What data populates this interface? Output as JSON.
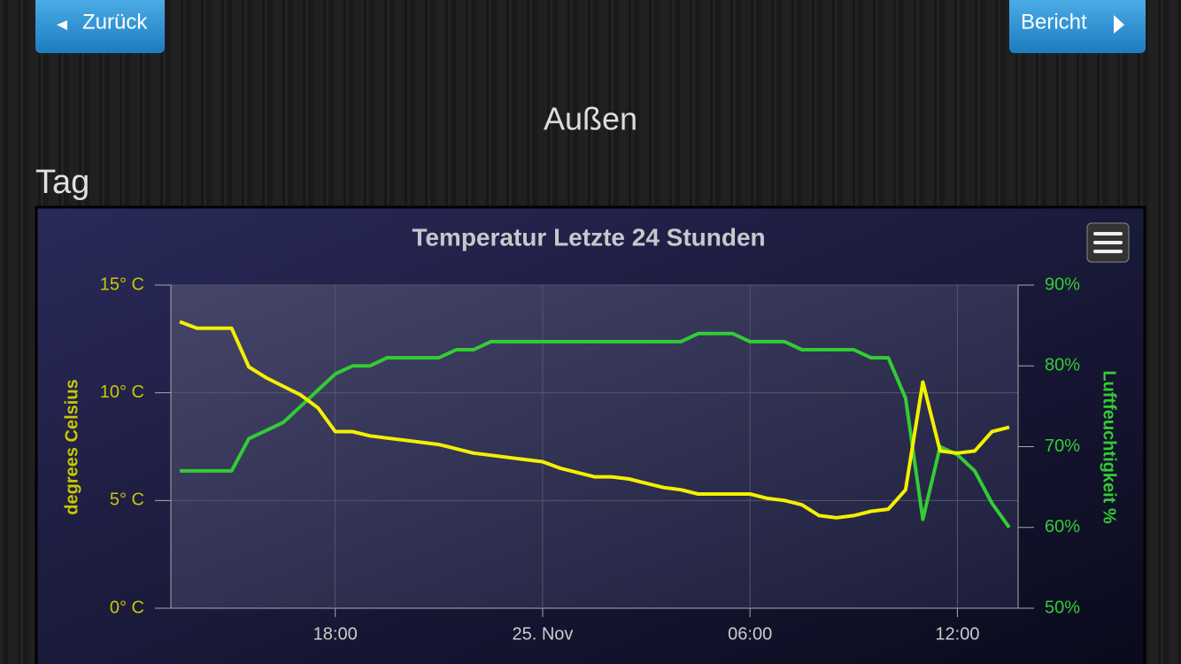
{
  "header": {
    "back": "Zurück",
    "report": "Bericht",
    "title": "Außen"
  },
  "section": "Tag",
  "chart_data": {
    "type": "line",
    "title": "Temperatur Letzte 24 Stunden",
    "x": [
      "13:30",
      "14:00",
      "14:30",
      "15:00",
      "15:30",
      "16:00",
      "16:30",
      "17:00",
      "17:30",
      "18:00",
      "18:30",
      "19:00",
      "19:30",
      "20:00",
      "20:30",
      "21:00",
      "21:30",
      "22:00",
      "22:30",
      "23:00",
      "23:30",
      "00:00",
      "00:30",
      "01:00",
      "01:30",
      "02:00",
      "02:30",
      "03:00",
      "03:30",
      "04:00",
      "04:30",
      "05:00",
      "05:30",
      "06:00",
      "06:30",
      "07:00",
      "07:30",
      "08:00",
      "08:30",
      "09:00",
      "09:30",
      "10:00",
      "10:30",
      "11:00",
      "11:30",
      "12:00",
      "12:30",
      "13:00",
      "13:30"
    ],
    "xticks": [
      "18:00",
      {
        "value": "00:00",
        "label": "25. Nov"
      },
      "06:00",
      "12:00"
    ],
    "ylabel": "degrees Celsius",
    "y2label": "Luftfeuchtigkeit %",
    "ylim": [
      0,
      15
    ],
    "yticks": [
      {
        "value": 0,
        "label": "0° C"
      },
      {
        "value": 5,
        "label": "5° C"
      },
      {
        "value": 10,
        "label": "10° C"
      },
      {
        "value": 15,
        "label": "15° C"
      }
    ],
    "y2lim": [
      50,
      90
    ],
    "y2ticks": [
      {
        "value": 50,
        "label": "50%"
      },
      {
        "value": 60,
        "label": "60%"
      },
      {
        "value": 70,
        "label": "70%"
      },
      {
        "value": 80,
        "label": "80%"
      },
      {
        "value": 90,
        "label": "90%"
      }
    ],
    "grid": true,
    "series": [
      {
        "color": "#f4f000",
        "values": [
          13.3,
          13.0,
          13.0,
          13.0,
          11.2,
          10.7,
          10.3,
          9.9,
          9.3,
          8.2,
          8.2,
          8.0,
          7.9,
          7.8,
          7.7,
          7.6,
          7.4,
          7.2,
          7.1,
          7.0,
          6.9,
          6.8,
          6.5,
          6.3,
          6.1,
          6.1,
          6.0,
          5.8,
          5.6,
          5.5,
          5.3,
          5.3,
          5.3,
          5.3,
          5.1,
          5.0,
          4.8,
          4.3,
          4.2,
          4.3,
          4.5,
          4.6,
          5.5,
          10.5,
          7.3,
          7.2,
          7.3,
          8.2,
          8.4
        ]
      },
      {
        "color": "#33cc33",
        "axis": "y2",
        "values": [
          67,
          67,
          67,
          67,
          71,
          72,
          73,
          75,
          77,
          79,
          80,
          80,
          81,
          81,
          81,
          81,
          82,
          82,
          83,
          83,
          83,
          83,
          83,
          83,
          83,
          83,
          83,
          83,
          83,
          83,
          84,
          84,
          84,
          83,
          83,
          83,
          82,
          82,
          82,
          82,
          81,
          81,
          76,
          61,
          70,
          69,
          67,
          63,
          60
        ]
      }
    ]
  }
}
